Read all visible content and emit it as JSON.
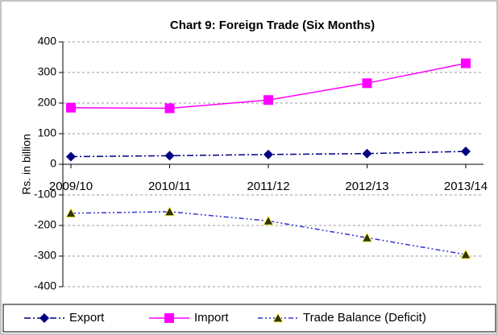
{
  "chart_data": {
    "type": "line",
    "title": "Chart 9: Foreign Trade (Six Months)",
    "y_label": "Rs. in billion",
    "categories": [
      "2009/10",
      "2010/11",
      "2011/12",
      "2012/13",
      "2013/14"
    ],
    "series": [
      {
        "name": "Export",
        "color": "#000080",
        "values": [
          25,
          28,
          32,
          35,
          42
        ]
      },
      {
        "name": "Import",
        "color": "#ff00ff",
        "values": [
          185,
          183,
          210,
          265,
          330
        ]
      },
      {
        "name": "Trade Balance (Deficit)",
        "color": "#3333cc",
        "values": [
          -160,
          -155,
          -185,
          -240,
          -295
        ]
      }
    ],
    "ylim": [
      -400,
      400
    ],
    "yticks": [
      -400,
      -300,
      -200,
      -100,
      0,
      100,
      200,
      300,
      400
    ],
    "grid": true
  }
}
